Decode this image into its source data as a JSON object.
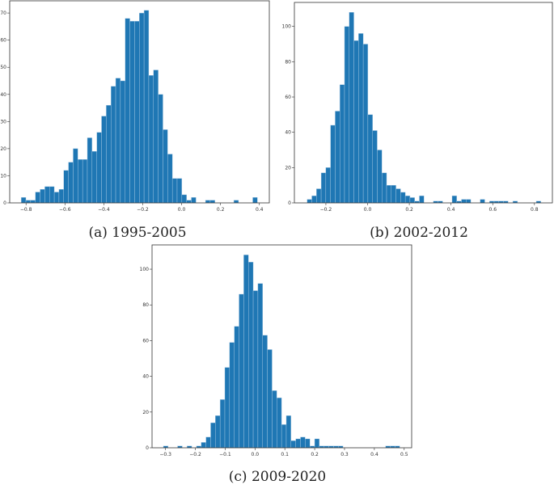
{
  "chart_data": [
    {
      "type": "bar",
      "subtype": "histogram",
      "caption": "(a) 1995-2005",
      "bin_start": -0.825,
      "bin_width": 0.0243,
      "values": [
        2,
        1,
        1,
        4,
        5,
        6,
        6,
        4,
        5,
        12,
        15,
        20,
        16,
        16,
        24,
        19,
        26,
        32,
        36,
        43,
        46,
        45,
        68,
        67,
        67,
        70,
        71,
        47,
        49,
        40,
        27,
        18,
        9,
        9,
        3,
        1,
        2,
        0,
        0,
        1,
        1,
        0,
        0,
        0,
        0,
        1,
        0,
        0,
        0,
        2
      ],
      "xlim": [
        -0.884,
        0.451
      ],
      "ylim": [
        0,
        74.5
      ],
      "xticks": [
        -0.8,
        -0.6,
        -0.4,
        -0.2,
        0.0,
        0.2,
        0.4
      ],
      "xtick_labels": [
        "−0.8",
        "−0.6",
        "−0.4",
        "−0.2",
        "0.0",
        "0.2",
        "0.4"
      ],
      "yticks": [
        0,
        10,
        20,
        30,
        40,
        50,
        60,
        70
      ],
      "ytick_labels": [
        "0",
        "10",
        "20",
        "30",
        "40",
        "50",
        "60",
        "70"
      ],
      "color": "#1f77b4",
      "grid": false
    },
    {
      "type": "bar",
      "subtype": "histogram",
      "caption": "(b) 2002-2012",
      "bin_start": -0.29,
      "bin_width": 0.02242,
      "values": [
        2,
        4,
        8,
        17,
        20,
        44,
        52,
        67,
        100,
        108,
        92,
        96,
        90,
        50,
        41,
        30,
        17,
        10,
        10,
        8,
        6,
        4,
        3,
        1,
        4,
        0,
        0,
        1,
        1,
        0,
        0,
        4,
        1,
        2,
        2,
        0,
        0,
        2,
        0,
        1,
        1,
        1,
        1,
        0,
        1,
        0,
        0,
        0,
        0,
        1
      ],
      "xlim": [
        -0.351,
        0.886
      ],
      "ylim": [
        0,
        113.6
      ],
      "xticks": [
        -0.2,
        0.0,
        0.2,
        0.4,
        0.6,
        0.8
      ],
      "xtick_labels": [
        "−0.2",
        "0.0",
        "0.2",
        "0.4",
        "0.6",
        "0.8"
      ],
      "yticks": [
        0,
        20,
        40,
        60,
        80,
        100
      ],
      "ytick_labels": [
        "0",
        "20",
        "40",
        "60",
        "80",
        "100"
      ],
      "color": "#1f77b4",
      "grid": false
    },
    {
      "type": "bar",
      "subtype": "histogram",
      "caption": "(c) 2009-2020",
      "bin_start": -0.307,
      "bin_width": 0.01584,
      "values": [
        1,
        0,
        0,
        1,
        0,
        1,
        0,
        1,
        3,
        6,
        14,
        18,
        27,
        45,
        59,
        68,
        86,
        108,
        104,
        88,
        92,
        63,
        55,
        32,
        28,
        13,
        18,
        4,
        5,
        6,
        5,
        1,
        5,
        1,
        1,
        1,
        1,
        1,
        0,
        0,
        0,
        0,
        0,
        0,
        0,
        0,
        0,
        1,
        1,
        1
      ],
      "xlim": [
        -0.345,
        0.525
      ],
      "ylim": [
        0,
        113.6
      ],
      "xticks": [
        -0.3,
        -0.2,
        -0.1,
        0.0,
        0.1,
        0.2,
        0.3,
        0.4,
        0.5
      ],
      "xtick_labels": [
        "−0.3",
        "−0.2",
        "−0.1",
        "0.0",
        "0.1",
        "0.2",
        "0.3",
        "0.4",
        "0.5"
      ],
      "yticks": [
        0,
        20,
        40,
        60,
        80,
        100
      ],
      "ytick_labels": [
        "0",
        "20",
        "40",
        "60",
        "80",
        "100"
      ],
      "color": "#1f77b4",
      "grid": false
    }
  ]
}
